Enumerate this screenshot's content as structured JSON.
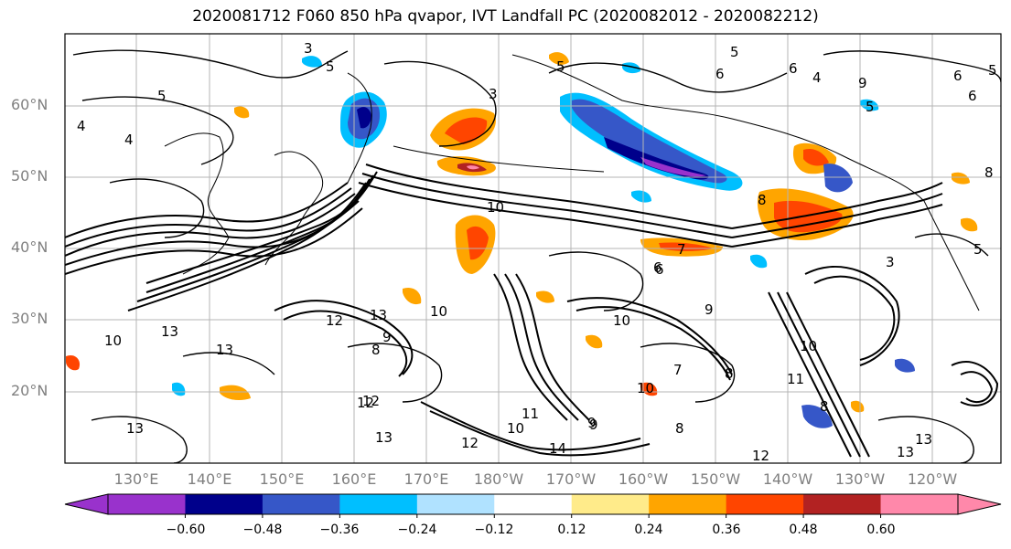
{
  "title": "2020081712 F060 850 hPa qvapor, IVT Landfall PC (2020082012 - 2020082212)",
  "lat_labels": [
    "60°N",
    "50°N",
    "40°N",
    "30°N",
    "20°N"
  ],
  "lon_labels": [
    "130°E",
    "140°E",
    "150°E",
    "160°E",
    "170°E",
    "180°W",
    "170°W",
    "160°W",
    "150°W",
    "140°W",
    "130°W",
    "120°W"
  ],
  "colorbar": {
    "colors": [
      "#9932CC",
      "#00008B",
      "#3657C8",
      "#00BFFF",
      "#B0E2FF",
      "#FFFFFF",
      "#FFEB8A",
      "#FFA500",
      "#FF4500",
      "#B22222",
      "#FF88AA"
    ],
    "tick_labels": [
      "−0.60",
      "−0.48",
      "−0.36",
      "−0.24",
      "−0.12",
      "0.12",
      "0.24",
      "0.36",
      "0.48",
      "0.60"
    ],
    "extend": "both"
  },
  "contour_labels": [
    "3",
    "5",
    "5",
    "4",
    "5",
    "5",
    "6",
    "6",
    "5",
    "9",
    "6",
    "5",
    "4",
    "3",
    "6",
    "8",
    "8",
    "10",
    "6",
    "4",
    "13",
    "12",
    "13",
    "13",
    "12",
    "13",
    "10",
    "9",
    "8",
    "10",
    "10",
    "7",
    "6",
    "7",
    "8",
    "11",
    "10",
    "9",
    "3",
    "10",
    "9",
    "8",
    "11",
    "12",
    "13",
    "12",
    "13",
    "12",
    "14",
    "9",
    "10",
    "13",
    "8",
    "5"
  ]
}
